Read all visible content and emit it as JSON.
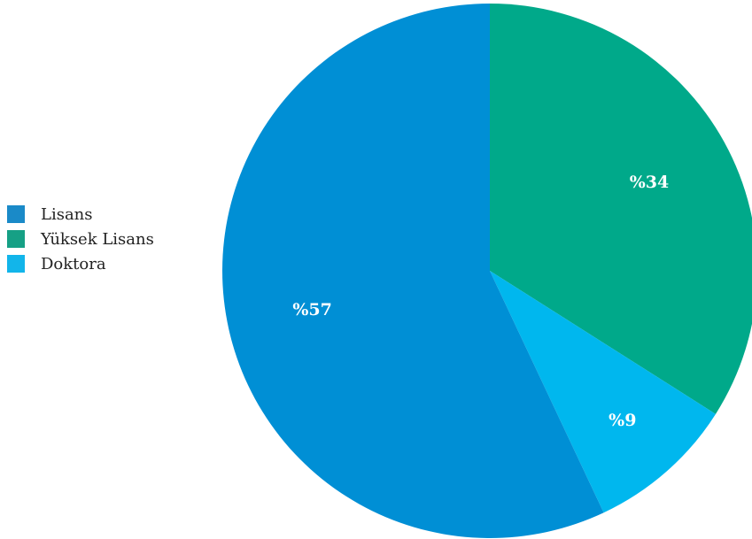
{
  "chart_data": {
    "type": "pie",
    "categories": [
      "Lisans",
      "Yüksek Lisans",
      "Doktora"
    ],
    "values": [
      57,
      34,
      9
    ],
    "data_labels": [
      "%57",
      "%34",
      "%9"
    ],
    "colors": [
      "#008fd5",
      "#00a98a",
      "#00b7ee"
    ],
    "start_angle_deg": 0,
    "direction": "clockwise",
    "slice_order_from_top": [
      "Yüksek Lisans",
      "Doktora",
      "Lisans"
    ],
    "legend_position": "left"
  },
  "legend": {
    "items": [
      {
        "label": "Lisans",
        "color": "#1a8ac8"
      },
      {
        "label": "Yüksek Lisans",
        "color": "#16a085"
      },
      {
        "label": "Doktora",
        "color": "#12b5ea"
      }
    ]
  }
}
